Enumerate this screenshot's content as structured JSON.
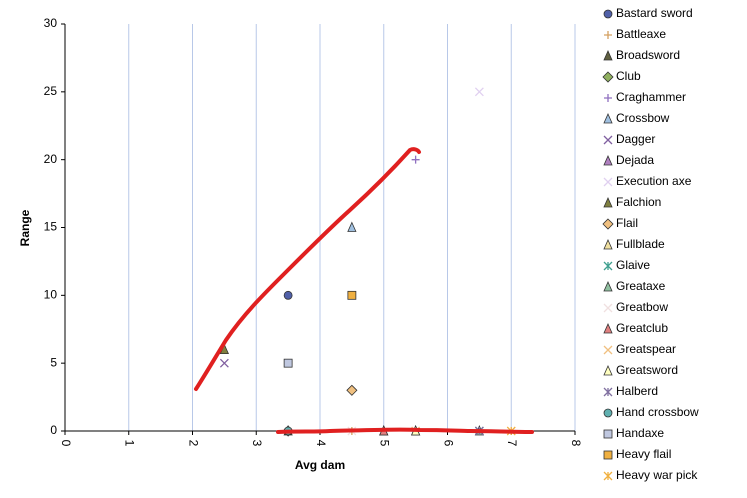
{
  "chart_data": {
    "type": "scatter",
    "x_label": "Avg dam",
    "y_label": "Range",
    "xlim": [
      0,
      8
    ],
    "xticks": [
      0,
      1,
      2,
      3,
      4,
      5,
      6,
      7,
      8
    ],
    "ylim": [
      0,
      30
    ],
    "yticks": [
      0,
      5,
      10,
      15,
      20,
      25,
      30
    ],
    "grid": true,
    "series": [
      {
        "name": "Bastard sword",
        "color": "#5060a8",
        "marker": "circle",
        "x": [
          3.5
        ],
        "values": [
          10
        ]
      },
      {
        "name": "Battleaxe",
        "color": "#d4a060",
        "marker": "plus",
        "x": [
          4.5
        ],
        "values": [
          0
        ]
      },
      {
        "name": "Broadsword",
        "color": "#606040",
        "marker": "triangle",
        "x": [
          3.5
        ],
        "values": [
          0
        ]
      },
      {
        "name": "Club",
        "color": "#90b060",
        "marker": "diamond",
        "x": [
          3.5
        ],
        "values": [
          0
        ]
      },
      {
        "name": "Craghammer",
        "color": "#9070c0",
        "marker": "plus",
        "x": [
          5.5
        ],
        "values": [
          20
        ]
      },
      {
        "name": "Crossbow",
        "color": "#a0c0e0",
        "marker": "triangle",
        "x": [
          4.5
        ],
        "values": [
          15
        ]
      },
      {
        "name": "Dagger",
        "color": "#8060a0",
        "marker": "x",
        "x": [
          2.5
        ],
        "values": [
          5
        ]
      },
      {
        "name": "Dejada",
        "color": "#b080c0",
        "marker": "triangle",
        "x": [
          5
        ],
        "values": [
          0
        ]
      },
      {
        "name": "Execution axe",
        "color": "#e0d0f0",
        "marker": "x",
        "x": [
          6.5
        ],
        "values": [
          25
        ]
      },
      {
        "name": "Falchion",
        "color": "#808040",
        "marker": "triangle",
        "x": [
          2.5
        ],
        "values": [
          6
        ]
      },
      {
        "name": "Flail",
        "color": "#f0c080",
        "marker": "diamond",
        "x": [
          4.5
        ],
        "values": [
          3
        ]
      },
      {
        "name": "Fullblade",
        "color": "#f0e0a0",
        "marker": "triangle",
        "x": [
          5.5
        ],
        "values": [
          0
        ]
      },
      {
        "name": "Glaive",
        "color": "#40a090",
        "marker": "star",
        "x": [
          6.5
        ],
        "values": [
          0
        ]
      },
      {
        "name": "Greataxe",
        "color": "#90c0a0",
        "marker": "triangle",
        "x": [
          6.5
        ],
        "values": [
          0
        ]
      },
      {
        "name": "Greatbow",
        "color": "#f0e0e0",
        "marker": "x",
        "x": [
          4.5
        ],
        "values": [
          0
        ]
      },
      {
        "name": "Greatclub",
        "color": "#e08080",
        "marker": "triangle",
        "x": [
          5
        ],
        "values": [
          0
        ]
      },
      {
        "name": "Greatspear",
        "color": "#f0c080",
        "marker": "x",
        "x": [
          5.5
        ],
        "values": [
          0
        ]
      },
      {
        "name": "Greatsword",
        "color": "#ffffc0",
        "marker": "triangle",
        "x": [
          5.5
        ],
        "values": [
          0
        ]
      },
      {
        "name": "Halberd",
        "color": "#8070a0",
        "marker": "star",
        "x": [
          6.5
        ],
        "values": [
          0
        ]
      },
      {
        "name": "Hand crossbow",
        "color": "#60b0b0",
        "marker": "circle",
        "x": [
          3.5
        ],
        "values": [
          0
        ]
      },
      {
        "name": "Handaxe",
        "color": "#c0c8e0",
        "marker": "square",
        "x": [
          3.5
        ],
        "values": [
          5
        ]
      },
      {
        "name": "Heavy flail",
        "color": "#f0b040",
        "marker": "square",
        "x": [
          4.5
        ],
        "values": [
          10
        ]
      },
      {
        "name": "Heavy war pick",
        "color": "#f0b040",
        "marker": "star",
        "x": [
          7
        ],
        "values": [
          0
        ]
      }
    ]
  }
}
